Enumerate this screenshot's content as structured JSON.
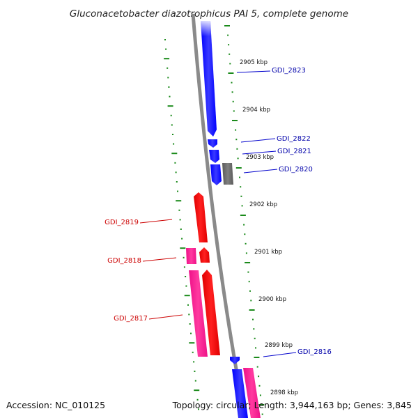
{
  "header": {
    "title": "Gluconacetobacter diazotrophicus PAI 5, complete genome"
  },
  "footer": {
    "accession": "Accession: NC_010125",
    "summary": "Topology: circular; Length: 3,944,163 bp; Genes: 3,845"
  },
  "colors": {
    "forward_cds": "#0000ff",
    "reverse_cds": "#ff0000",
    "reverse_rna": "#ff1493",
    "forward_other": "#6e6e6e",
    "backbone": "#8a8a8a",
    "tick_marks": "#1a8a1a",
    "label_forward": "#0000aa",
    "label_reverse": "#cc0000"
  },
  "ticks": [
    {
      "label": "2905 kbp"
    },
    {
      "label": "2904 kbp"
    },
    {
      "label": "2903 kbp"
    },
    {
      "label": "2902 kbp"
    },
    {
      "label": "2901 kbp"
    },
    {
      "label": "2900 kbp"
    },
    {
      "label": "2899 kbp"
    },
    {
      "label": "2898 kbp"
    }
  ],
  "gene_labels": [
    {
      "name": "GDI_2823",
      "strand": "forward"
    },
    {
      "name": "GDI_2822",
      "strand": "forward"
    },
    {
      "name": "GDI_2821",
      "strand": "forward"
    },
    {
      "name": "GDI_2820",
      "strand": "forward"
    },
    {
      "name": "GDI_2819",
      "strand": "reverse"
    },
    {
      "name": "GDI_2818",
      "strand": "reverse"
    },
    {
      "name": "GDI_2817",
      "strand": "reverse"
    },
    {
      "name": "GDI_2816",
      "strand": "forward"
    }
  ]
}
